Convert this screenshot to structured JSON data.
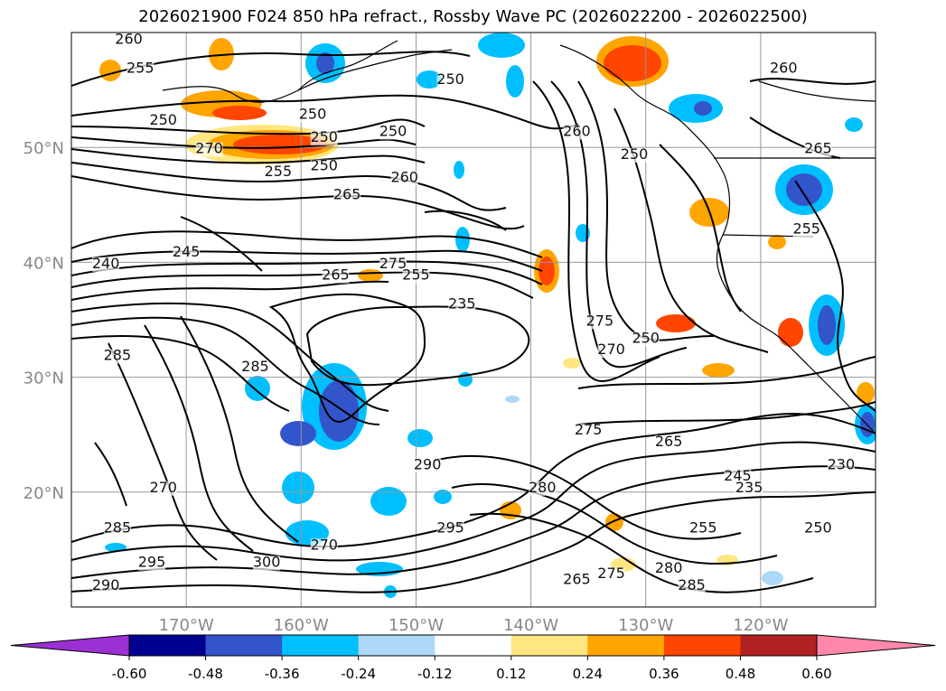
{
  "title": "2026021900 F024 850 hPa refract., Rossby Wave PC (2026022200 - 2026022500)",
  "map": {
    "lon_range": [
      -180,
      -110
    ],
    "lat_range": [
      10,
      60
    ],
    "lon_ticks": [
      {
        "value": -170,
        "label": "170°W"
      },
      {
        "value": -160,
        "label": "160°W"
      },
      {
        "value": -150,
        "label": "150°W"
      },
      {
        "value": -140,
        "label": "140°W"
      },
      {
        "value": -130,
        "label": "130°W"
      },
      {
        "value": -120,
        "label": "120°W"
      }
    ],
    "lat_ticks": [
      {
        "value": 20,
        "label": "20°N"
      },
      {
        "value": 30,
        "label": "30°N"
      },
      {
        "value": 40,
        "label": "40°N"
      },
      {
        "value": 50,
        "label": "50°N"
      }
    ],
    "grid": true,
    "contour_labels": [
      {
        "text": "260",
        "lon": -175,
        "lat": 59
      },
      {
        "text": "255",
        "lon": -174,
        "lat": 56.5
      },
      {
        "text": "250",
        "lon": -172,
        "lat": 52
      },
      {
        "text": "270",
        "lon": -168,
        "lat": 49.5
      },
      {
        "text": "250",
        "lon": -159,
        "lat": 52.5
      },
      {
        "text": "250",
        "lon": -158,
        "lat": 50.5
      },
      {
        "text": "250",
        "lon": -152,
        "lat": 51
      },
      {
        "text": "250",
        "lon": -147,
        "lat": 55.5
      },
      {
        "text": "255",
        "lon": -162,
        "lat": 47.5
      },
      {
        "text": "250",
        "lon": -158,
        "lat": 48
      },
      {
        "text": "260",
        "lon": -151,
        "lat": 47
      },
      {
        "text": "265",
        "lon": -156,
        "lat": 45.5
      },
      {
        "text": "245",
        "lon": -170,
        "lat": 40.5
      },
      {
        "text": "240",
        "lon": -177,
        "lat": 39.5
      },
      {
        "text": "275",
        "lon": -152,
        "lat": 39.5
      },
      {
        "text": "265",
        "lon": -157,
        "lat": 38.5
      },
      {
        "text": "255",
        "lon": -150,
        "lat": 38.5
      },
      {
        "text": "235",
        "lon": -146,
        "lat": 36
      },
      {
        "text": "285",
        "lon": -176,
        "lat": 31.5
      },
      {
        "text": "285",
        "lon": -164,
        "lat": 30.5
      },
      {
        "text": "260",
        "lon": -136,
        "lat": 51
      },
      {
        "text": "250",
        "lon": -131,
        "lat": 49
      },
      {
        "text": "250",
        "lon": -130,
        "lat": 33
      },
      {
        "text": "275",
        "lon": -134,
        "lat": 34.5
      },
      {
        "text": "270",
        "lon": -133,
        "lat": 32
      },
      {
        "text": "275",
        "lon": -135,
        "lat": 25
      },
      {
        "text": "265",
        "lon": -128,
        "lat": 24
      },
      {
        "text": "260",
        "lon": -118,
        "lat": 56.5
      },
      {
        "text": "265",
        "lon": -115,
        "lat": 49.5
      },
      {
        "text": "255",
        "lon": -116,
        "lat": 42.5
      },
      {
        "text": "290",
        "lon": -149,
        "lat": 22
      },
      {
        "text": "295",
        "lon": -147,
        "lat": 16.5
      },
      {
        "text": "270",
        "lon": -158,
        "lat": 15
      },
      {
        "text": "300",
        "lon": -163,
        "lat": 13.5
      },
      {
        "text": "285",
        "lon": -176,
        "lat": 16.5
      },
      {
        "text": "295",
        "lon": -173,
        "lat": 13.5
      },
      {
        "text": "290",
        "lon": -177,
        "lat": 11.5
      },
      {
        "text": "270",
        "lon": -172,
        "lat": 20
      },
      {
        "text": "280",
        "lon": -139,
        "lat": 20
      },
      {
        "text": "255",
        "lon": -125,
        "lat": 16.5
      },
      {
        "text": "250",
        "lon": -115,
        "lat": 16.5
      },
      {
        "text": "280",
        "lon": -128,
        "lat": 13
      },
      {
        "text": "285",
        "lon": -126,
        "lat": 11.5
      },
      {
        "text": "275",
        "lon": -133,
        "lat": 12.5
      },
      {
        "text": "265",
        "lon": -136,
        "lat": 12
      },
      {
        "text": "245",
        "lon": -122,
        "lat": 21
      },
      {
        "text": "235",
        "lon": -121,
        "lat": 20
      },
      {
        "text": "230",
        "lon": -113,
        "lat": 22
      }
    ]
  },
  "colorbar": {
    "ticks": [
      "-0.60",
      "-0.48",
      "-0.36",
      "-0.24",
      "-0.12",
      "0.12",
      "0.24",
      "0.36",
      "0.48",
      "0.60"
    ],
    "colors": [
      "#9b30d4",
      "#000090",
      "#3355cc",
      "#00bfff",
      "#add8f7",
      "#ffffff",
      "#ffe680",
      "#ffa500",
      "#ff4500",
      "#b22222",
      "#ff88aa"
    ]
  }
}
